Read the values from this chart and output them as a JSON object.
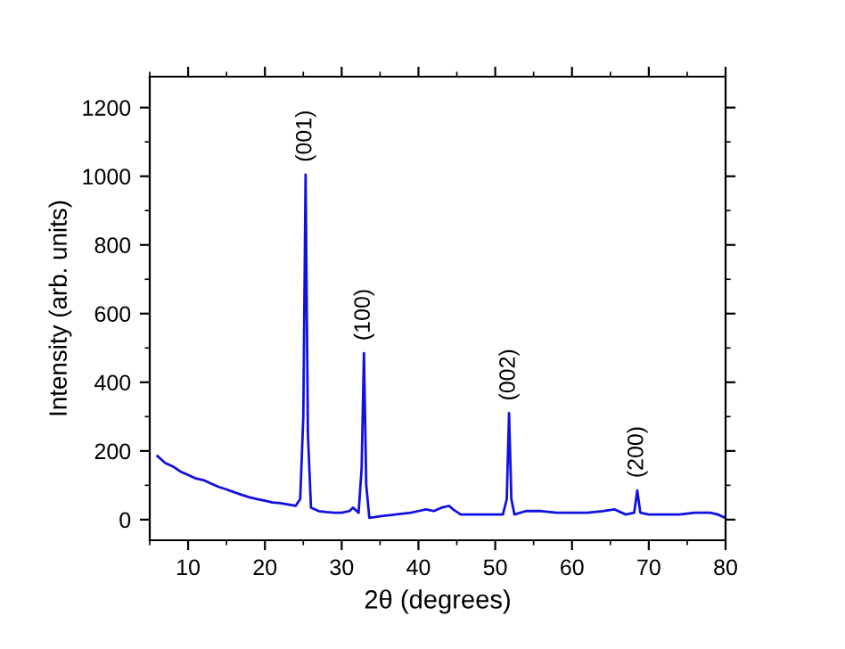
{
  "chart_data": {
    "type": "line",
    "xlabel": "2θ (degrees)",
    "ylabel": "Intensity (arb. units)",
    "series": [
      {
        "color": "#1010e0",
        "x": [
          6,
          7,
          8,
          9,
          10,
          11,
          12,
          13,
          14,
          15,
          16,
          17,
          18,
          19,
          20,
          21,
          22,
          23,
          24,
          24.6,
          25.0,
          25.3,
          25.6,
          26.0,
          27,
          28,
          29,
          30,
          31,
          31.5,
          32.2,
          32.6,
          32.9,
          33.2,
          33.6,
          35,
          37,
          39,
          40,
          41,
          42,
          43,
          44,
          44.5,
          45.5,
          47,
          49,
          51,
          51.5,
          51.8,
          52.1,
          52.5,
          54,
          56,
          58,
          60,
          62,
          64,
          65.5,
          67,
          68.1,
          68.5,
          68.9,
          70,
          72,
          74,
          76,
          78,
          79,
          80
        ],
        "values": [
          185,
          165,
          155,
          140,
          130,
          120,
          115,
          105,
          95,
          88,
          80,
          72,
          65,
          60,
          55,
          50,
          48,
          44,
          40,
          60,
          300,
          1005,
          250,
          35,
          25,
          22,
          20,
          20,
          25,
          35,
          20,
          150,
          485,
          100,
          5,
          10,
          15,
          20,
          25,
          30,
          25,
          35,
          40,
          30,
          15,
          15,
          15,
          15,
          60,
          310,
          60,
          15,
          25,
          25,
          20,
          20,
          20,
          25,
          30,
          15,
          20,
          85,
          20,
          15,
          15,
          15,
          20,
          20,
          15,
          5
        ]
      }
    ],
    "xlim": [
      5,
      80
    ],
    "ylim": [
      -60,
      1290
    ],
    "xticks": [
      10,
      20,
      30,
      40,
      50,
      60,
      70,
      80
    ],
    "yticks": [
      0,
      200,
      400,
      600,
      800,
      1000,
      1200
    ],
    "grid": false,
    "legend": false,
    "marker": "none",
    "line_style": "solid",
    "annotations": [
      {
        "text": "(001)",
        "x": 25.3,
        "y": 1005
      },
      {
        "text": "(100)",
        "x": 32.9,
        "y": 485
      },
      {
        "text": "(002)",
        "x": 51.8,
        "y": 310
      },
      {
        "text": "(200)",
        "x": 68.5,
        "y": 85
      }
    ]
  }
}
